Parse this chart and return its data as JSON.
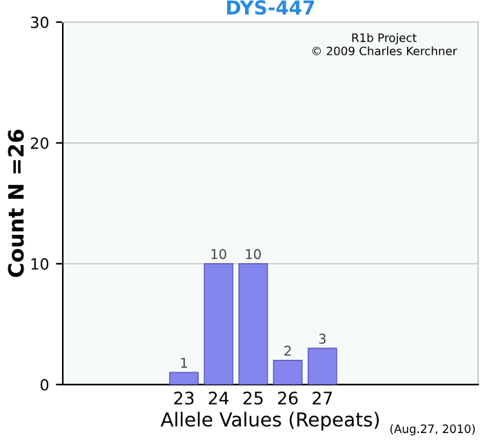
{
  "chart_data": {
    "type": "bar",
    "title": "DYS-447",
    "xlabel": "Allele Values (Repeats)",
    "ylabel": "Count N =26",
    "categories": [
      null,
      null,
      null,
      "23",
      "24",
      "25",
      "26",
      "27",
      null,
      null,
      null,
      null
    ],
    "values": [
      null,
      null,
      null,
      1,
      10,
      10,
      2,
      3,
      null,
      null,
      null,
      null
    ],
    "color": "#8585ee",
    "ylim": [
      0,
      30
    ],
    "yticks": [
      0,
      10,
      20,
      30
    ],
    "grid": "y",
    "data_labels": true,
    "annotations": [
      "R1b Project",
      "© 2009 Charles Kerchner",
      "(Aug.27, 2010)"
    ]
  }
}
